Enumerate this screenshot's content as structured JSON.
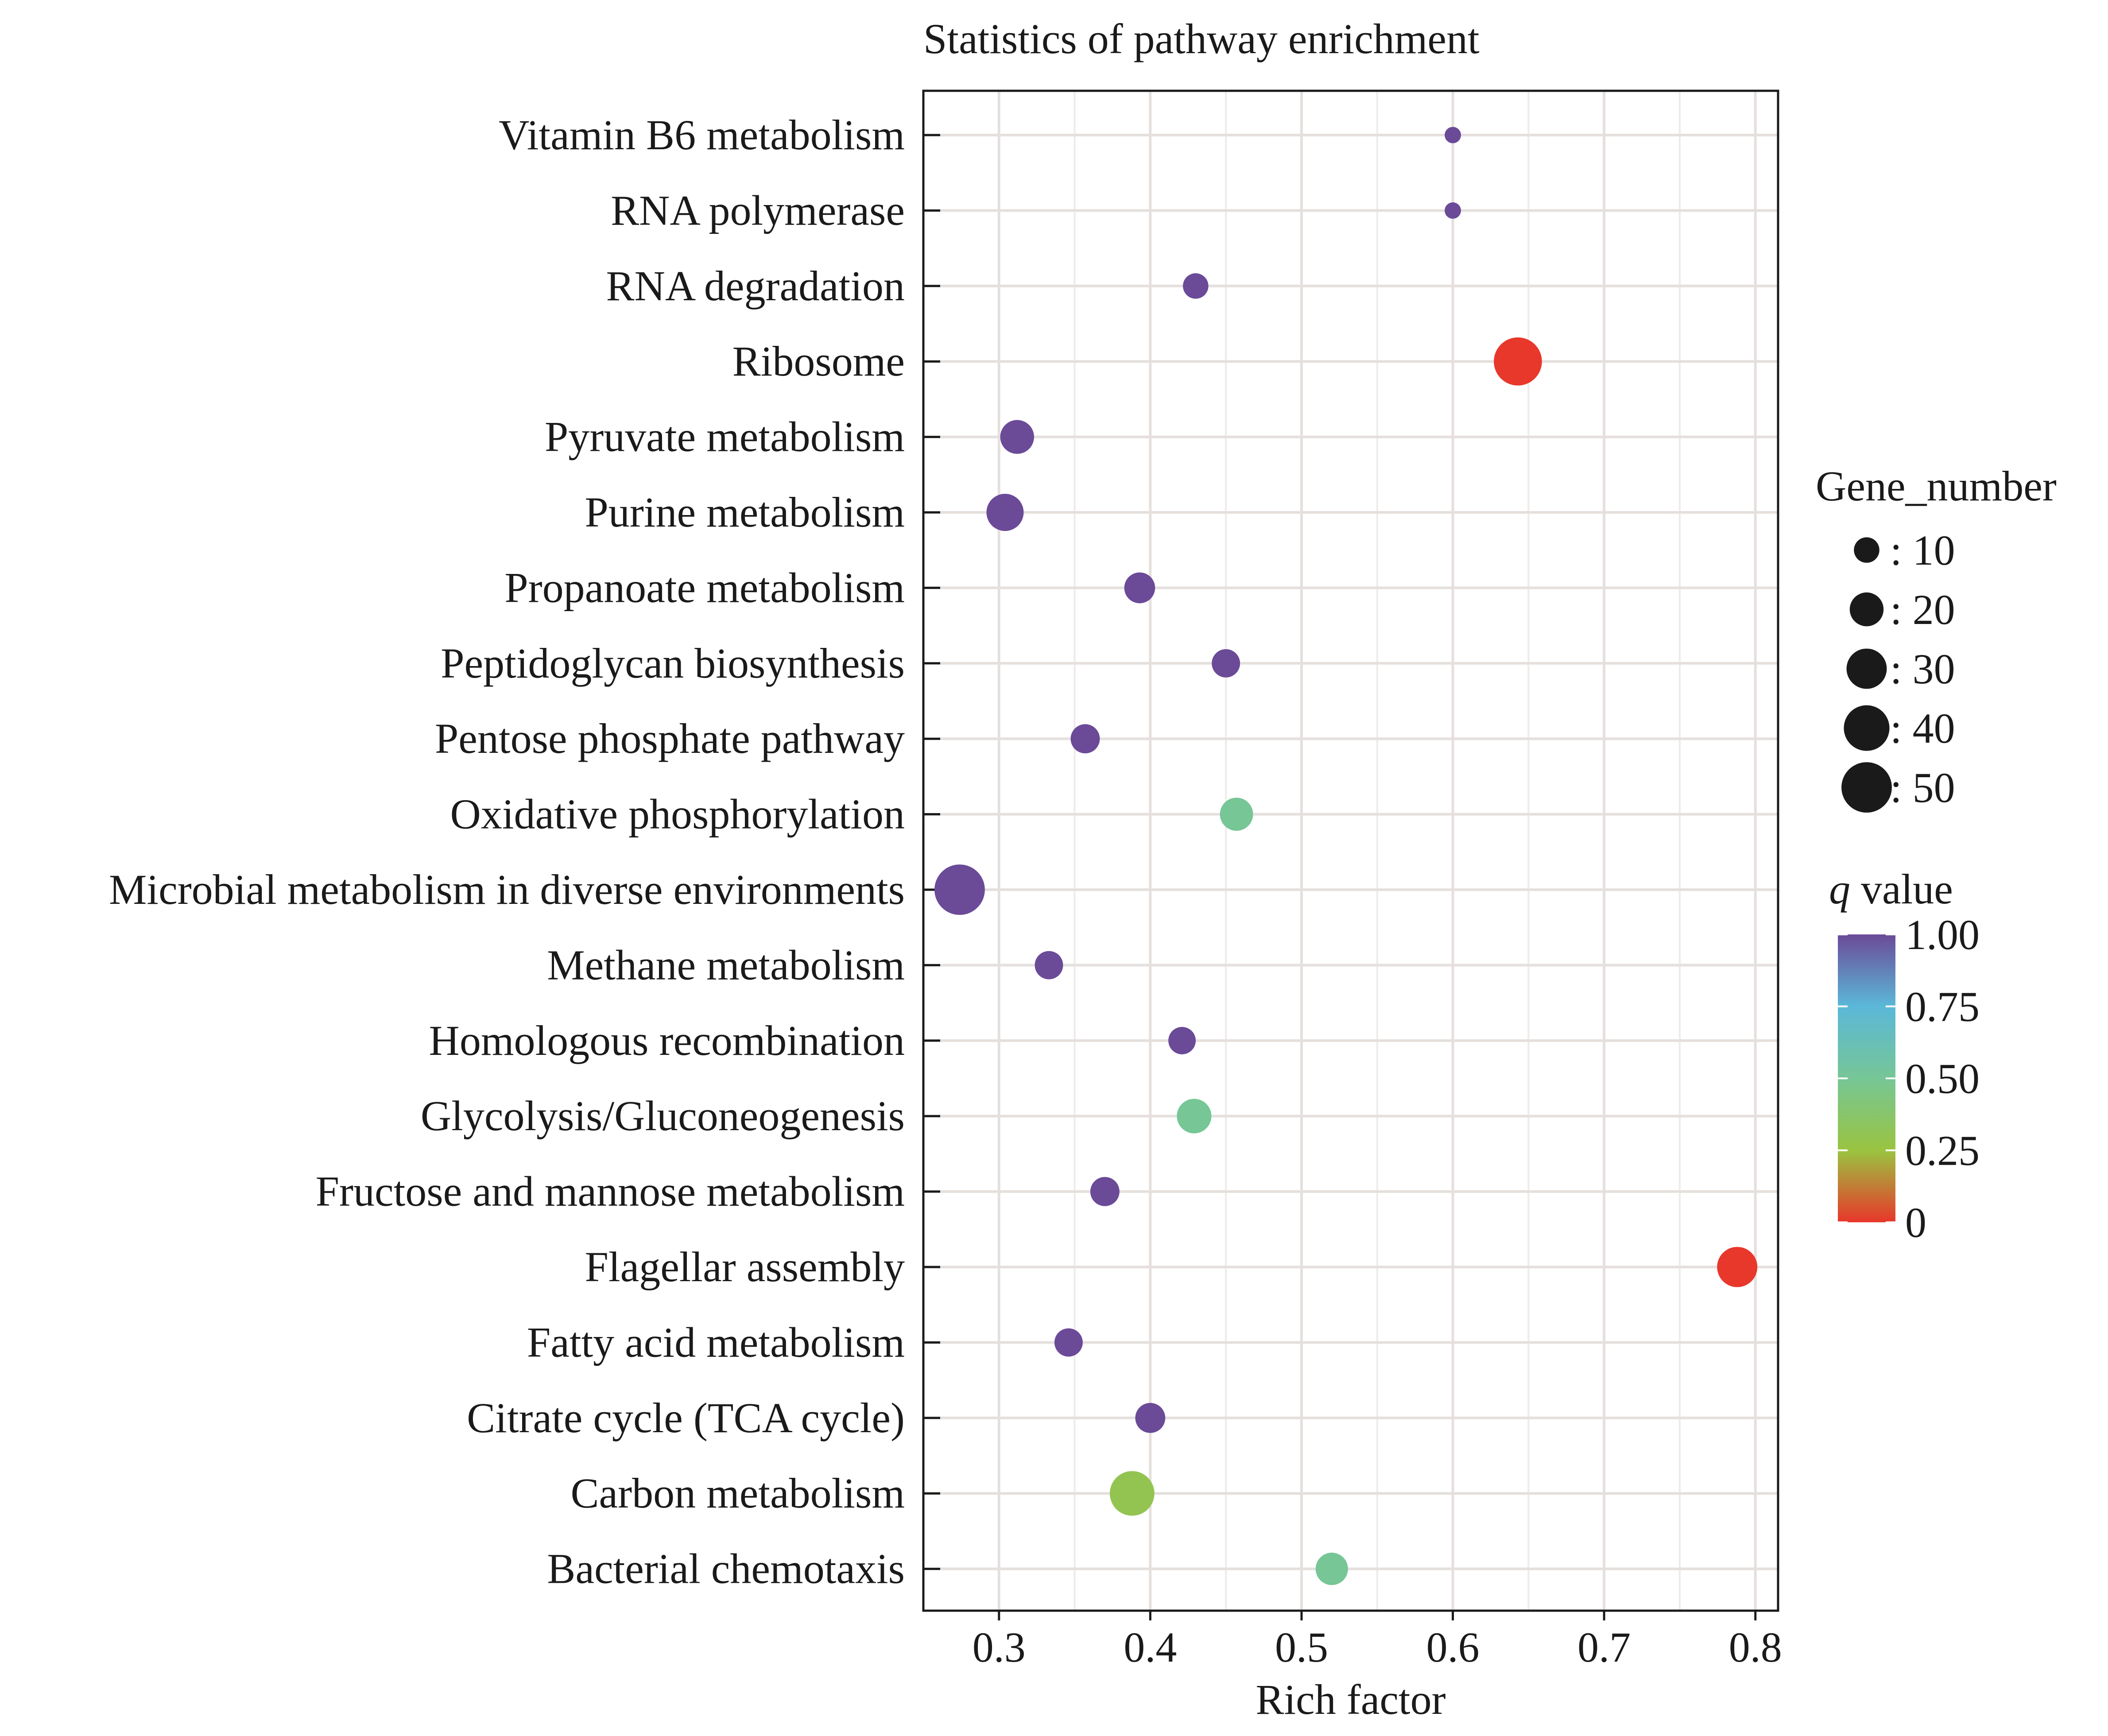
{
  "chart_data": {
    "type": "scatter",
    "title": "Statistics of pathway enrichment",
    "xlabel": "Rich factor",
    "ylabel": "",
    "xlim": [
      0.25,
      0.815
    ],
    "xticks": [
      0.3,
      0.4,
      0.5,
      0.6,
      0.7,
      0.8
    ],
    "xtick_labels": [
      "0.3",
      "0.4",
      "0.5",
      "0.6",
      "0.7",
      "0.8"
    ],
    "grid": true,
    "categories": [
      "Vitamin B6 metabolism",
      "RNA polymerase",
      "RNA degradation",
      "Ribosome",
      "Pyruvate metabolism",
      "Purine metabolism",
      "Propanoate metabolism",
      "Peptidoglycan biosynthesis",
      "Pentose phosphate pathway",
      "Oxidative phosphorylation",
      "Microbial metabolism in diverse environments",
      "Methane metabolism",
      "Homologous recombination",
      "Glycolysis/Gluconeogenesis",
      "Fructose and mannose metabolism",
      "Flagellar assembly",
      "Fatty acid metabolism",
      "Citrate cycle (TCA cycle)",
      "Carbon metabolism",
      "Bacterial chemotaxis"
    ],
    "points": [
      {
        "category": "Vitamin B6 metabolism",
        "rich_factor": 0.6,
        "gene_number": 3,
        "q_value": 1.0
      },
      {
        "category": "RNA polymerase",
        "rich_factor": 0.6,
        "gene_number": 3,
        "q_value": 1.0
      },
      {
        "category": "RNA degradation",
        "rich_factor": 0.43,
        "gene_number": 10,
        "q_value": 1.0
      },
      {
        "category": "Ribosome",
        "rich_factor": 0.643,
        "gene_number": 45,
        "q_value": 0.0
      },
      {
        "category": "Pyruvate metabolism",
        "rich_factor": 0.312,
        "gene_number": 20,
        "q_value": 1.0
      },
      {
        "category": "Purine metabolism",
        "rich_factor": 0.304,
        "gene_number": 25,
        "q_value": 1.0
      },
      {
        "category": "Propanoate metabolism",
        "rich_factor": 0.393,
        "gene_number": 16,
        "q_value": 1.0
      },
      {
        "category": "Peptidoglycan biosynthesis",
        "rich_factor": 0.45,
        "gene_number": 13,
        "q_value": 1.0
      },
      {
        "category": "Pentose phosphate pathway",
        "rich_factor": 0.357,
        "gene_number": 14,
        "q_value": 1.0
      },
      {
        "category": "Oxidative phosphorylation",
        "rich_factor": 0.457,
        "gene_number": 19,
        "q_value": 0.5
      },
      {
        "category": "Microbial metabolism in diverse environments",
        "rich_factor": 0.274,
        "gene_number": 50,
        "q_value": 1.0
      },
      {
        "category": "Methane metabolism",
        "rich_factor": 0.333,
        "gene_number": 13,
        "q_value": 1.0
      },
      {
        "category": "Homologous recombination",
        "rich_factor": 0.421,
        "gene_number": 12,
        "q_value": 1.0
      },
      {
        "category": "Glycolysis/Gluconeogenesis",
        "rich_factor": 0.429,
        "gene_number": 21,
        "q_value": 0.5
      },
      {
        "category": "Fructose and mannose metabolism",
        "rich_factor": 0.37,
        "gene_number": 14,
        "q_value": 1.0
      },
      {
        "category": "Flagellar assembly",
        "rich_factor": 0.788,
        "gene_number": 30,
        "q_value": 0.0
      },
      {
        "category": "Fatty acid metabolism",
        "rich_factor": 0.346,
        "gene_number": 13,
        "q_value": 1.0
      },
      {
        "category": "Citrate cycle (TCA cycle)",
        "rich_factor": 0.4,
        "gene_number": 15,
        "q_value": 1.0
      },
      {
        "category": "Carbon metabolism",
        "rich_factor": 0.388,
        "gene_number": 38,
        "q_value": 0.3
      },
      {
        "category": "Bacterial chemotaxis",
        "rich_factor": 0.52,
        "gene_number": 18,
        "q_value": 0.5
      }
    ],
    "legend": {
      "placement": "right",
      "size_title": "Gene_number",
      "size_entries": [
        {
          "value": 10,
          "label": ": 10"
        },
        {
          "value": 20,
          "label": ": 20"
        },
        {
          "value": 30,
          "label": ": 30"
        },
        {
          "value": 40,
          "label": ": 40"
        },
        {
          "value": 50,
          "label": ": 50"
        }
      ],
      "color_title_italic": "q",
      "color_title_rest": " value",
      "color_ticks": [
        1.0,
        0.75,
        0.5,
        0.25,
        0
      ],
      "color_tick_labels": [
        "1.00",
        "0.75",
        "0.50",
        "0.25",
        "0"
      ],
      "color_stops": [
        {
          "q": 0.0,
          "color": "#e8372b"
        },
        {
          "q": 0.25,
          "color": "#9ac440"
        },
        {
          "q": 0.5,
          "color": "#76c696"
        },
        {
          "q": 0.75,
          "color": "#5bb8d8"
        },
        {
          "q": 1.0,
          "color": "#6b4a98"
        }
      ]
    }
  }
}
